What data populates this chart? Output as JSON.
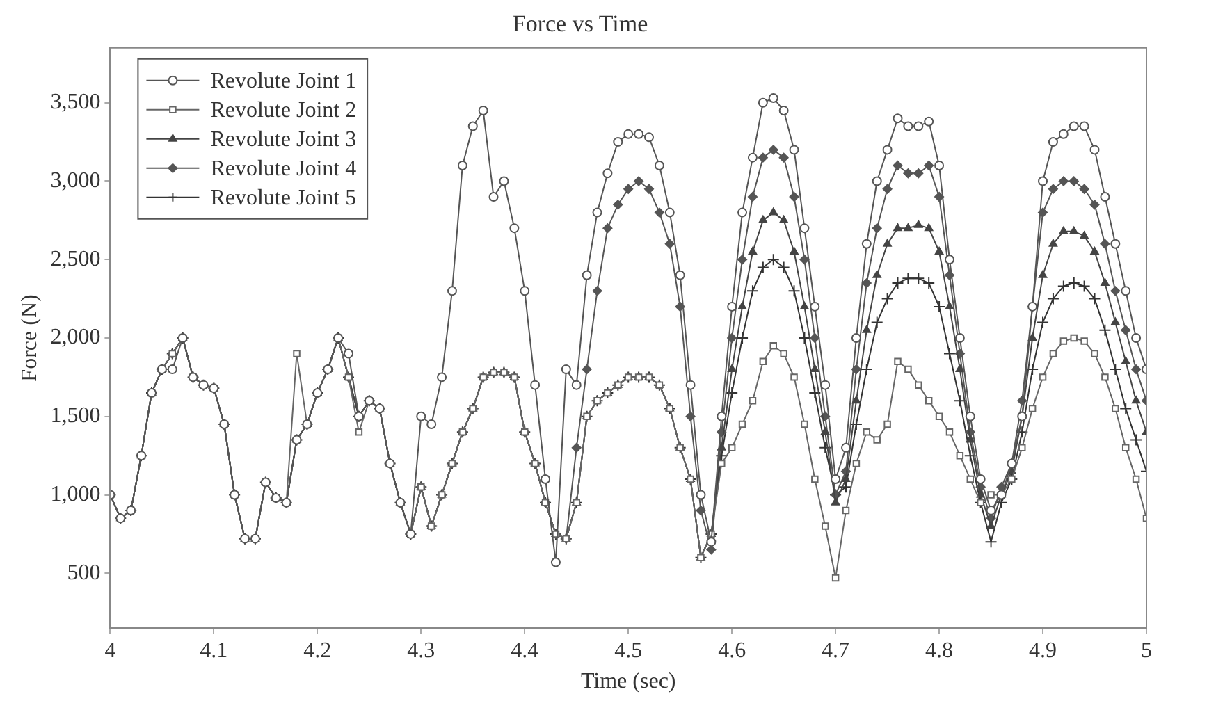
{
  "chart_data": {
    "type": "line",
    "title": "Force vs Time",
    "xlabel": "Time (sec)",
    "ylabel": "Force (N)",
    "x": [
      4,
      4.01,
      4.02,
      4.03,
      4.04,
      4.05,
      4.06,
      4.07,
      4.08,
      4.09,
      4.1,
      4.11,
      4.12,
      4.13,
      4.14,
      4.15,
      4.16,
      4.17,
      4.18,
      4.19,
      4.2,
      4.21,
      4.22,
      4.23,
      4.24,
      4.25,
      4.26,
      4.27,
      4.28,
      4.29,
      4.3,
      4.31,
      4.32,
      4.33,
      4.34,
      4.35,
      4.36,
      4.37,
      4.38,
      4.39,
      4.4,
      4.41,
      4.42,
      4.43,
      4.44,
      4.45,
      4.46,
      4.47,
      4.48,
      4.49,
      4.5,
      4.51,
      4.52,
      4.53,
      4.54,
      4.55,
      4.56,
      4.57,
      4.58,
      4.59,
      4.6,
      4.61,
      4.62,
      4.63,
      4.64,
      4.65,
      4.66,
      4.67,
      4.68,
      4.69,
      4.7,
      4.71,
      4.72,
      4.73,
      4.74,
      4.75,
      4.76,
      4.77,
      4.78,
      4.79,
      4.8,
      4.81,
      4.82,
      4.83,
      4.84,
      4.85,
      4.86,
      4.87,
      4.88,
      4.89,
      4.9,
      4.91,
      4.92,
      4.93,
      4.94,
      4.95,
      4.96,
      4.97,
      4.98,
      4.99,
      5
    ],
    "series": [
      {
        "name": "Revolute Joint 1",
        "color": "#555555",
        "marker": "circle",
        "values": [
          1000,
          850,
          900,
          1250,
          1650,
          1800,
          1800,
          2000,
          1750,
          1700,
          1680,
          1450,
          1000,
          720,
          720,
          1080,
          980,
          950,
          1350,
          1450,
          1650,
          1800,
          2000,
          1900,
          1500,
          1600,
          1550,
          1200,
          950,
          750,
          1500,
          1450,
          1750,
          2300,
          3100,
          3350,
          3450,
          2900,
          3000,
          2700,
          2300,
          1700,
          1100,
          570,
          1800,
          1700,
          2400,
          2800,
          3050,
          3250,
          3300,
          3300,
          3280,
          3100,
          2800,
          2400,
          1700,
          1000,
          700,
          1500,
          2200,
          2800,
          3150,
          3500,
          3530,
          3450,
          3200,
          2700,
          2200,
          1700,
          1100,
          1300,
          2000,
          2600,
          3000,
          3200,
          3400,
          3350,
          3350,
          3380,
          3100,
          2500,
          2000,
          1500,
          1100,
          900,
          1000,
          1200,
          1500,
          2200,
          3000,
          3250,
          3300,
          3350,
          3350,
          3200,
          2900,
          2600,
          2300,
          2000,
          1800
        ]
      },
      {
        "name": "Revolute Joint 2",
        "color": "#666666",
        "marker": "square",
        "values": [
          1000,
          850,
          900,
          1250,
          1650,
          1800,
          1900,
          2000,
          1750,
          1700,
          1680,
          1450,
          1000,
          720,
          720,
          1080,
          980,
          950,
          1900,
          1450,
          1650,
          1800,
          2000,
          1750,
          1400,
          1600,
          1550,
          1200,
          950,
          750,
          1050,
          800,
          1000,
          1200,
          1400,
          1550,
          1750,
          1780,
          1780,
          1750,
          1400,
          1200,
          950,
          750,
          720,
          950,
          1500,
          1600,
          1650,
          1700,
          1750,
          1750,
          1750,
          1700,
          1550,
          1300,
          1100,
          600,
          750,
          1200,
          1300,
          1450,
          1600,
          1850,
          1950,
          1900,
          1750,
          1450,
          1100,
          800,
          470,
          900,
          1200,
          1400,
          1350,
          1450,
          1850,
          1800,
          1700,
          1600,
          1500,
          1400,
          1250,
          1100,
          950,
          1000,
          1000,
          1100,
          1300,
          1550,
          1750,
          1900,
          1980,
          2000,
          1980,
          1900,
          1750,
          1550,
          1300,
          1100,
          850
        ]
      },
      {
        "name": "Revolute Joint 3",
        "color": "#444444",
        "marker": "triangle",
        "values": [
          1000,
          850,
          900,
          1250,
          1650,
          1800,
          1900,
          2000,
          1750,
          1700,
          1680,
          1450,
          1000,
          720,
          720,
          1080,
          980,
          950,
          1350,
          1450,
          1650,
          1800,
          2000,
          1750,
          1500,
          1600,
          1550,
          1200,
          950,
          750,
          1050,
          800,
          1000,
          1200,
          1400,
          1550,
          1750,
          1780,
          1780,
          1750,
          1400,
          1200,
          950,
          750,
          720,
          950,
          1500,
          1600,
          1650,
          1700,
          1750,
          1750,
          1750,
          1700,
          1550,
          1300,
          1100,
          600,
          750,
          1300,
          1800,
          2200,
          2550,
          2750,
          2800,
          2750,
          2550,
          2200,
          1800,
          1400,
          950,
          1100,
          1600,
          2050,
          2400,
          2600,
          2700,
          2700,
          2720,
          2700,
          2550,
          2200,
          1800,
          1350,
          1000,
          800,
          1000,
          1150,
          1500,
          2000,
          2400,
          2600,
          2680,
          2680,
          2650,
          2550,
          2350,
          2100,
          1850,
          1600,
          1400
        ]
      },
      {
        "name": "Revolute Joint 4",
        "color": "#555555",
        "marker": "diamond",
        "values": [
          1000,
          850,
          900,
          1250,
          1650,
          1800,
          1900,
          2000,
          1750,
          1700,
          1680,
          1450,
          1000,
          720,
          720,
          1080,
          980,
          950,
          1350,
          1450,
          1650,
          1800,
          2000,
          1750,
          1500,
          1600,
          1550,
          1200,
          950,
          750,
          1050,
          800,
          1000,
          1200,
          1400,
          1550,
          1750,
          1780,
          1780,
          1750,
          1400,
          1200,
          950,
          750,
          720,
          1300,
          1800,
          2300,
          2700,
          2850,
          2950,
          3000,
          2950,
          2800,
          2600,
          2200,
          1500,
          900,
          650,
          1400,
          2000,
          2500,
          2900,
          3150,
          3200,
          3150,
          2900,
          2500,
          2000,
          1500,
          1000,
          1150,
          1800,
          2350,
          2700,
          2950,
          3100,
          3050,
          3050,
          3100,
          2900,
          2400,
          1900,
          1400,
          1050,
          850,
          1050,
          1200,
          1600,
          2200,
          2800,
          2950,
          3000,
          3000,
          2950,
          2850,
          2600,
          2300,
          2050,
          1800,
          1600
        ]
      },
      {
        "name": "Revolute Joint 5",
        "color": "#333333",
        "marker": "cross",
        "values": [
          1000,
          850,
          900,
          1250,
          1650,
          1800,
          1900,
          2000,
          1750,
          1700,
          1680,
          1450,
          1000,
          720,
          720,
          1080,
          980,
          950,
          1350,
          1450,
          1650,
          1800,
          2000,
          1750,
          1500,
          1600,
          1550,
          1200,
          950,
          750,
          1050,
          800,
          1000,
          1200,
          1400,
          1550,
          1750,
          1780,
          1780,
          1750,
          1400,
          1200,
          950,
          750,
          720,
          950,
          1500,
          1600,
          1650,
          1700,
          1750,
          1750,
          1750,
          1700,
          1550,
          1300,
          1100,
          600,
          750,
          1250,
          1650,
          2000,
          2300,
          2450,
          2500,
          2450,
          2300,
          2000,
          1650,
          1300,
          1000,
          1050,
          1450,
          1800,
          2100,
          2250,
          2350,
          2380,
          2380,
          2350,
          2200,
          1900,
          1600,
          1250,
          950,
          700,
          950,
          1100,
          1400,
          1800,
          2100,
          2250,
          2330,
          2350,
          2330,
          2250,
          2050,
          1800,
          1550,
          1350,
          1150
        ]
      }
    ],
    "xlim": [
      4,
      5
    ],
    "xticks": [
      4,
      4.1,
      4.2,
      4.3,
      4.4,
      4.5,
      4.6,
      4.7,
      4.8,
      4.9,
      5
    ],
    "ylim": [
      150,
      3850
    ],
    "yticks": [
      {
        "value": 500,
        "label": "500"
      },
      {
        "value": 1000,
        "label": "1,000"
      },
      {
        "value": 1500,
        "label": "1,500"
      },
      {
        "value": 2000,
        "label": "2,000"
      },
      {
        "value": 2500,
        "label": "2,500"
      },
      {
        "value": 3000,
        "label": "3,000"
      },
      {
        "value": 3500,
        "label": "3,500"
      }
    ],
    "grid": false,
    "legend": "top left",
    "line_style": "solid"
  }
}
